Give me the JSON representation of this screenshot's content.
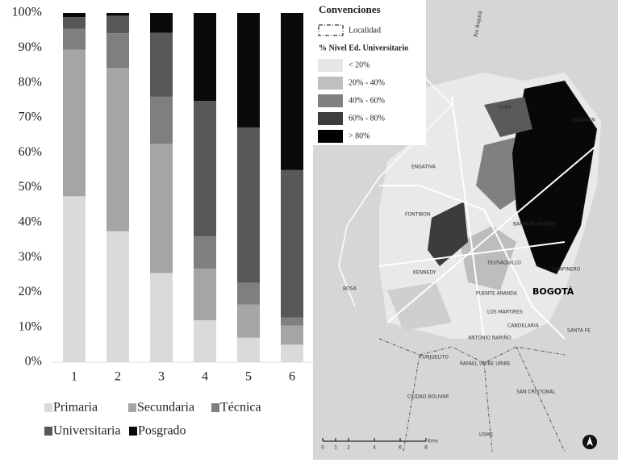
{
  "chart_data": {
    "type": "stacked_bar",
    "categories": [
      "1",
      "2",
      "3",
      "4",
      "5",
      "6"
    ],
    "series": [
      {
        "name": "Primaria",
        "color": "#dadada",
        "values": [
          47.5,
          37.5,
          25.5,
          12,
          7,
          5
        ]
      },
      {
        "name": "Secundaria",
        "color": "#a5a5a5",
        "values": [
          42,
          46.7,
          37,
          14.8,
          9.5,
          5.5
        ]
      },
      {
        "name": "Técnica",
        "color": "#7f7f7f",
        "values": [
          6,
          10,
          13.5,
          9.2,
          6.2,
          2.3
        ]
      },
      {
        "name": "Universitaria",
        "color": "#585858",
        "values": [
          3.3,
          5,
          18.3,
          38.8,
          44.5,
          42.2
        ]
      },
      {
        "name": "Posgrado",
        "color": "#0a0a0a",
        "values": [
          1.2,
          0.8,
          5.7,
          25.2,
          32.8,
          45
        ]
      }
    ],
    "ylim": [
      0,
      100
    ],
    "yticks": [
      {
        "value": 0,
        "label": "0%"
      },
      {
        "value": 10,
        "label": "10%"
      },
      {
        "value": 20,
        "label": "20%"
      },
      {
        "value": 30,
        "label": "30%"
      },
      {
        "value": 40,
        "label": "40%"
      },
      {
        "value": 50,
        "label": "50%"
      },
      {
        "value": 60,
        "label": "60%"
      },
      {
        "value": 70,
        "label": "70%"
      },
      {
        "value": 80,
        "label": "80%"
      },
      {
        "value": 90,
        "label": "90%"
      },
      {
        "value": 100,
        "label": "100%"
      }
    ],
    "grid": false
  },
  "map": {
    "legend_title": "Convenciones",
    "locality_label": "Localidad",
    "classes_title": "% Nivel Ed. Universitario",
    "classes": [
      {
        "label": "< 20%",
        "color": "#e6e6e6"
      },
      {
        "label": "20% - 40%",
        "color": "#bfbfbf"
      },
      {
        "label": "40% - 60%",
        "color": "#808080"
      },
      {
        "label": "60% - 80%",
        "color": "#3c3c3c"
      },
      {
        "label": "> 80%",
        "color": "#000000"
      }
    ],
    "labels": [
      "SUBA",
      "USAQUEN",
      "ENGATIVA",
      "FONTIBON",
      "BARRIOS UNIDOS",
      "KENNEDY",
      "TEUSAQUILLO",
      "CHAPINERO",
      "BOSA",
      "PUENTE ARANDA",
      "BOGOTÁ",
      "LOS MARTIRES",
      "CANDELARIA",
      "SANTA FE",
      "ANTONIO NARIÑO",
      "TUNJUELITO",
      "RAFAEL URIBE URIBE",
      "CIUDAD BOLIVAR",
      "SAN CRISTOBAL",
      "USME",
      "Rio Bogotá"
    ],
    "scale_ticks": [
      "0",
      "1",
      "2",
      "4",
      "6",
      "8"
    ],
    "scale_unit": "Kms"
  }
}
